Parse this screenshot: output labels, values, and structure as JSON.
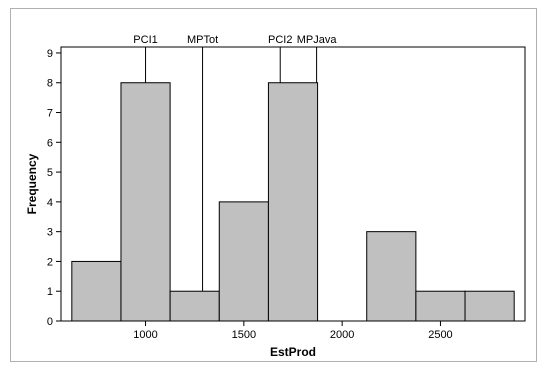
{
  "chart_data": {
    "type": "bar",
    "title": "",
    "xlabel": "EstProd",
    "ylabel": "Frequency",
    "bin_edges": [
      625,
      875,
      1125,
      1375,
      1625,
      1875,
      2125,
      2375,
      2625,
      2875
    ],
    "values": [
      2,
      8,
      1,
      4,
      8,
      0,
      3,
      1,
      1
    ],
    "xlim": [
      570,
      2930
    ],
    "ylim": [
      0,
      9.2
    ],
    "x_ticks": [
      1000,
      1500,
      2000,
      2500
    ],
    "y_ticks": [
      0,
      1,
      2,
      3,
      4,
      5,
      6,
      7,
      8,
      9
    ],
    "reference_lines": [
      {
        "label": "PCI1",
        "x": 1000
      },
      {
        "label": "MPTot",
        "x": 1290
      },
      {
        "label": "PCI2",
        "x": 1685
      },
      {
        "label": "MPJava",
        "x": 1870
      }
    ],
    "grid": false,
    "legend": "none",
    "colors": {
      "bar_fill": "#c0c0c0",
      "bar_stroke": "#000000",
      "background": "#ffffff"
    }
  }
}
